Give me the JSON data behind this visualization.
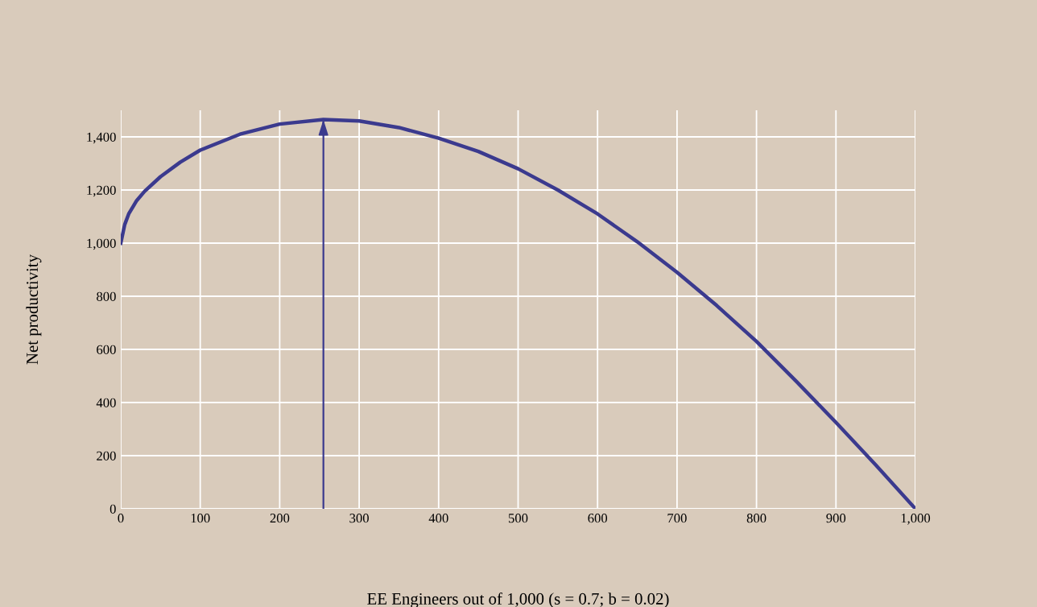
{
  "chart_data": {
    "type": "line",
    "xlabel": "EE Engineers out of 1,000 (s = 0.7; b = 0.02)",
    "ylabel": "Net productivity",
    "x": [
      0,
      5,
      10,
      20,
      30,
      50,
      75,
      100,
      150,
      200,
      255,
      300,
      350,
      400,
      450,
      500,
      550,
      600,
      650,
      700,
      750,
      800,
      850,
      900,
      950,
      1000
    ],
    "series": [
      {
        "color": "#3b3a8e",
        "values": [
          1000,
          1070,
          1110,
          1160,
          1195,
          1250,
          1305,
          1350,
          1410,
          1448,
          1465,
          1460,
          1435,
          1395,
          1345,
          1280,
          1200,
          1110,
          1005,
          890,
          765,
          630,
          480,
          325,
          165,
          0
        ]
      },
      {
        "color": "#3b3a8e",
        "x": [
          255,
          255
        ],
        "values": [
          0,
          1465
        ],
        "line_style": "solid"
      }
    ],
    "xlim": [
      0,
      1000
    ],
    "ylim": [
      0,
      1500
    ],
    "xticks": [
      0,
      100,
      200,
      300,
      400,
      500,
      600,
      700,
      800,
      900,
      {
        "value": 1000,
        "label": "1,000"
      }
    ],
    "yticks": [
      0,
      200,
      400,
      600,
      800,
      {
        "value": 1000,
        "label": "1,000"
      },
      {
        "value": 1200,
        "label": "1,200"
      },
      {
        "value": 1400,
        "label": "1,400"
      }
    ],
    "grid": true,
    "legend": false
  }
}
